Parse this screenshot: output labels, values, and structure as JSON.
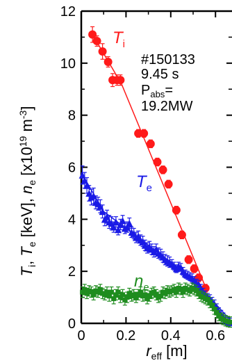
{
  "chart_data": {
    "type": "scatter",
    "ylabel": "T_i, T_e [keV], n_e [x10^19 m^-3]",
    "xlabel": "r_eff [m]",
    "xlim": [
      0,
      0.68
    ],
    "ylim": [
      0,
      12
    ],
    "x_ticks": [
      "0",
      "0.2",
      "0.4",
      "0.6"
    ],
    "y_ticks": [
      "0",
      "2",
      "4",
      "6",
      "8",
      "10",
      "12"
    ],
    "grid": false,
    "annotation": {
      "line1": "#150133",
      "line2": "9.45 s",
      "line3_main": "P",
      "line3_sub": "abs",
      "line3_tail": "=",
      "line4": "19.2MW"
    },
    "series": [
      {
        "name": "T_i",
        "label_main": "T",
        "label_sub": "i",
        "color": "#ff1a1a",
        "marker": "circle",
        "x": [
          0.05,
          0.07,
          0.095,
          0.12,
          0.14,
          0.16,
          0.175,
          0.255,
          0.28,
          0.31,
          0.34,
          0.365,
          0.39,
          0.425,
          0.45,
          0.48,
          0.505,
          0.525,
          0.555
        ],
        "y": [
          11.1,
          10.85,
          10.45,
          10.05,
          9.35,
          9.35,
          9.35,
          7.3,
          7.3,
          6.9,
          6.2,
          5.9,
          5.35,
          4.35,
          3.4,
          2.45,
          2.1,
          1.75,
          1.35
        ],
        "err": [
          0.3,
          0.2,
          0.3,
          0.2,
          0.25,
          0.2,
          0.2,
          0.15,
          0.15,
          0.15,
          0.15,
          0.15,
          0.15,
          0.15,
          0.15,
          0.15,
          0.15,
          0.15,
          0.15
        ],
        "fit_x": [
          0.05,
          0.18,
          0.56
        ],
        "fit_y": [
          11.1,
          9.2,
          1.3
        ]
      },
      {
        "name": "T_e",
        "label_main": "T",
        "label_sub": "e",
        "color": "#1a1ae6",
        "marker": "triangle",
        "x": [
          0.005,
          0.015,
          0.025,
          0.035,
          0.045,
          0.055,
          0.065,
          0.075,
          0.085,
          0.095,
          0.105,
          0.115,
          0.125,
          0.135,
          0.145,
          0.155,
          0.165,
          0.175,
          0.185,
          0.195,
          0.205,
          0.215,
          0.225,
          0.235,
          0.245,
          0.255,
          0.265,
          0.275,
          0.285,
          0.295,
          0.305,
          0.315,
          0.325,
          0.335,
          0.345,
          0.355,
          0.365,
          0.375,
          0.385,
          0.395,
          0.405,
          0.415,
          0.425,
          0.435,
          0.445,
          0.455,
          0.465,
          0.475,
          0.485,
          0.495,
          0.505,
          0.515,
          0.525,
          0.535,
          0.545,
          0.555,
          0.565,
          0.575,
          0.585,
          0.595,
          0.605,
          0.615,
          0.625,
          0.635,
          0.645,
          0.655,
          0.665
        ],
        "y": [
          5.7,
          5.5,
          5.3,
          5.0,
          4.85,
          4.9,
          4.65,
          4.6,
          4.5,
          4.3,
          4.0,
          4.1,
          3.9,
          3.85,
          3.7,
          3.9,
          3.6,
          3.8,
          3.95,
          3.65,
          3.7,
          3.85,
          3.5,
          3.45,
          3.3,
          3.35,
          3.2,
          3.15,
          3.0,
          2.9,
          2.95,
          2.85,
          2.75,
          2.85,
          2.7,
          2.65,
          2.55,
          2.45,
          2.4,
          2.35,
          2.3,
          2.2,
          2.1,
          2.2,
          2.15,
          2.0,
          1.9,
          1.85,
          1.8,
          1.75,
          1.65,
          1.55,
          1.5,
          1.35,
          1.2,
          1.1,
          1.0,
          0.95,
          0.85,
          0.75,
          0.6,
          0.45,
          0.35,
          0.25,
          0.15,
          0.08,
          0.05
        ],
        "err": [
          0.35,
          0.3,
          0.3,
          0.3,
          0.3,
          0.3,
          0.25,
          0.25,
          0.25,
          0.25,
          0.25,
          0.25,
          0.25,
          0.25,
          0.2,
          0.2,
          0.2,
          0.2,
          0.2,
          0.2,
          0.2,
          0.2,
          0.2,
          0.2,
          0.2,
          0.2,
          0.2,
          0.2,
          0.2,
          0.2,
          0.2,
          0.2,
          0.2,
          0.2,
          0.2,
          0.2,
          0.2,
          0.2,
          0.2,
          0.2,
          0.15,
          0.15,
          0.15,
          0.15,
          0.15,
          0.15,
          0.15,
          0.15,
          0.15,
          0.15,
          0.15,
          0.15,
          0.15,
          0.15,
          0.15,
          0.15,
          0.15,
          0.15,
          0.15,
          0.15,
          0.15,
          0.15,
          0.15,
          0.15,
          0.15,
          0.15,
          0.15
        ],
        "fit_x": [
          0.0,
          0.1,
          0.3,
          0.5,
          0.68
        ],
        "fit_y": [
          5.8,
          4.3,
          3.0,
          1.7,
          0.0
        ]
      },
      {
        "name": "n_e",
        "label_main": "n",
        "label_sub": "e",
        "color": "#1f8c1f",
        "marker": "square",
        "x": [
          0.005,
          0.015,
          0.025,
          0.035,
          0.045,
          0.055,
          0.065,
          0.075,
          0.085,
          0.095,
          0.105,
          0.115,
          0.125,
          0.135,
          0.145,
          0.155,
          0.165,
          0.175,
          0.185,
          0.195,
          0.205,
          0.215,
          0.225,
          0.235,
          0.245,
          0.255,
          0.265,
          0.275,
          0.285,
          0.295,
          0.305,
          0.315,
          0.325,
          0.335,
          0.345,
          0.355,
          0.365,
          0.375,
          0.385,
          0.395,
          0.405,
          0.415,
          0.425,
          0.435,
          0.445,
          0.455,
          0.465,
          0.475,
          0.485,
          0.495,
          0.505,
          0.515,
          0.525,
          0.535,
          0.545,
          0.555,
          0.565,
          0.575,
          0.585,
          0.595,
          0.605,
          0.615,
          0.625,
          0.635,
          0.645,
          0.655,
          0.665
        ],
        "y": [
          1.2,
          1.3,
          1.15,
          1.25,
          1.2,
          1.1,
          1.25,
          1.2,
          1.3,
          1.15,
          1.1,
          1.2,
          1.05,
          1.2,
          0.95,
          1.1,
          1.2,
          1.0,
          1.1,
          0.9,
          1.0,
          1.15,
          1.05,
          1.1,
          1.0,
          1.1,
          1.2,
          1.05,
          1.1,
          0.95,
          1.05,
          1.15,
          1.2,
          1.1,
          1.0,
          1.05,
          1.2,
          1.15,
          1.25,
          1.2,
          1.25,
          1.3,
          1.2,
          1.35,
          1.3,
          1.2,
          1.35,
          1.3,
          1.25,
          1.35,
          1.3,
          1.25,
          1.15,
          1.05,
          1.0,
          0.95,
          0.9,
          0.8,
          0.7,
          0.55,
          0.4,
          0.3,
          0.2,
          0.15,
          0.1,
          0.07,
          0.05
        ],
        "err": [
          0.2,
          0.2,
          0.2,
          0.2,
          0.2,
          0.2,
          0.2,
          0.2,
          0.2,
          0.2,
          0.2,
          0.2,
          0.2,
          0.2,
          0.2,
          0.2,
          0.2,
          0.2,
          0.2,
          0.2,
          0.2,
          0.2,
          0.2,
          0.2,
          0.2,
          0.2,
          0.2,
          0.2,
          0.2,
          0.2,
          0.2,
          0.2,
          0.2,
          0.2,
          0.2,
          0.2,
          0.2,
          0.2,
          0.2,
          0.2,
          0.2,
          0.2,
          0.2,
          0.2,
          0.2,
          0.2,
          0.2,
          0.2,
          0.2,
          0.2,
          0.2,
          0.2,
          0.2,
          0.2,
          0.2,
          0.2,
          0.2,
          0.2,
          0.2,
          0.2,
          0.2,
          0.2,
          0.2,
          0.2,
          0.2,
          0.2,
          0.2
        ]
      }
    ]
  }
}
